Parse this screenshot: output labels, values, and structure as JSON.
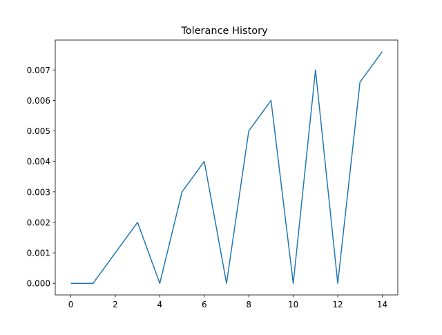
{
  "chart_data": {
    "type": "line",
    "title": "Tolerance History",
    "xlabel": "",
    "ylabel": "",
    "xlim": [
      -0.7,
      14.7
    ],
    "ylim": [
      -0.00038,
      0.00798
    ],
    "x_ticks": [
      0,
      2,
      4,
      6,
      8,
      10,
      12,
      14
    ],
    "x_tick_labels": [
      "0",
      "2",
      "4",
      "6",
      "8",
      "10",
      "12",
      "14"
    ],
    "y_ticks": [
      0,
      0.001,
      0.002,
      0.003,
      0.004,
      0.005,
      0.006,
      0.007
    ],
    "y_tick_labels": [
      "0.000",
      "0.001",
      "0.002",
      "0.003",
      "0.004",
      "0.005",
      "0.006",
      "0.007"
    ],
    "grid": false,
    "series": [
      {
        "color": "#1f77b4",
        "x": [
          0,
          1,
          2,
          3,
          4,
          5,
          6,
          7,
          8,
          9,
          10,
          11,
          12,
          13,
          14
        ],
        "values": [
          0,
          0,
          0.001,
          0.002,
          0,
          0.003,
          0.004,
          0,
          0.005,
          0.006,
          0,
          0.007,
          0,
          0.0066,
          0.0076
        ]
      }
    ]
  }
}
